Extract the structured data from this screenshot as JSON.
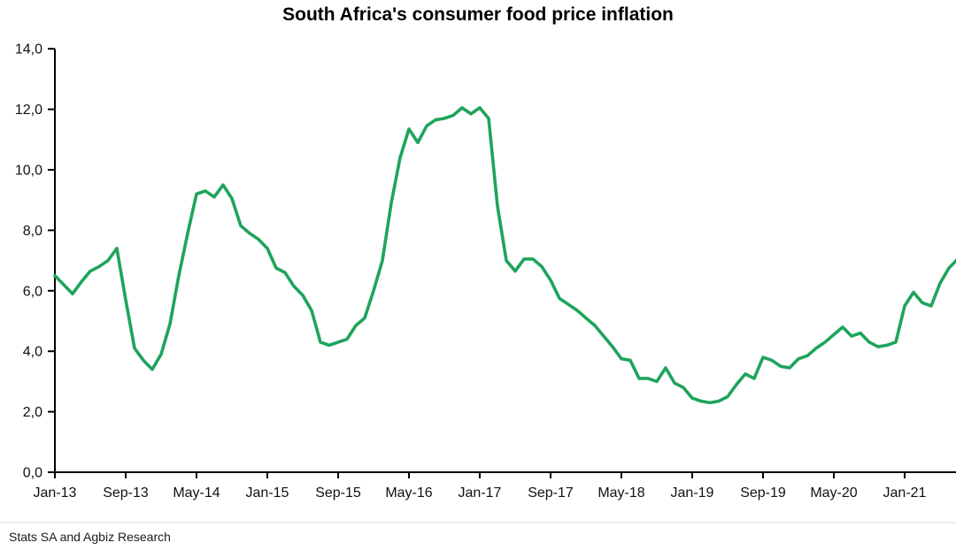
{
  "title": "South Africa's consumer food price inflation",
  "source": "Stats SA and Agbiz Research",
  "chart_data": {
    "type": "line",
    "title": "South Africa's consumer food price inflation",
    "frequency": "monthly",
    "x_start": "Jan-13",
    "x_end": "Jul-21",
    "x_tick_labels": [
      "Jan-13",
      "Sep-13",
      "May-14",
      "Jan-15",
      "Sep-15",
      "May-16",
      "Jan-17",
      "Sep-17",
      "May-18",
      "Jan-19",
      "Sep-19",
      "May-20",
      "Jan-21"
    ],
    "x_tick_every_months": 8,
    "y_tick_labels": [
      "0,0",
      "2,0",
      "4,0",
      "6,0",
      "8,0",
      "10,0",
      "12,0",
      "14,0"
    ],
    "ylim": [
      0,
      14
    ],
    "grid": "off",
    "legend": "none",
    "line_color": "#1EA45C",
    "axis_color": "#000000",
    "values": [
      6.5,
      6.2,
      5.9,
      6.3,
      6.65,
      6.8,
      7.0,
      7.4,
      5.7,
      4.1,
      3.7,
      3.4,
      3.9,
      4.9,
      6.5,
      7.9,
      9.2,
      9.3,
      9.1,
      9.5,
      9.05,
      8.15,
      7.9,
      7.7,
      7.4,
      6.75,
      6.6,
      6.15,
      5.85,
      5.35,
      4.3,
      4.2,
      4.3,
      4.4,
      4.85,
      5.1,
      6.0,
      7.0,
      8.9,
      10.4,
      11.35,
      10.9,
      11.45,
      11.65,
      11.7,
      11.8,
      12.05,
      11.85,
      12.05,
      11.7,
      8.8,
      7.0,
      6.65,
      7.05,
      7.05,
      6.8,
      6.35,
      5.75,
      5.55,
      5.35,
      5.1,
      4.85,
      4.5,
      4.15,
      3.75,
      3.7,
      3.1,
      3.1,
      3.0,
      3.45,
      2.95,
      2.8,
      2.45,
      2.35,
      2.3,
      2.35,
      2.5,
      2.9,
      3.25,
      3.1,
      3.8,
      3.7,
      3.5,
      3.45,
      3.75,
      3.85,
      4.1,
      4.3,
      4.55,
      4.8,
      4.5,
      4.6,
      4.3,
      4.15,
      4.2,
      4.3,
      5.5,
      5.95,
      5.6,
      5.5,
      6.25,
      6.75,
      7.05
    ]
  }
}
